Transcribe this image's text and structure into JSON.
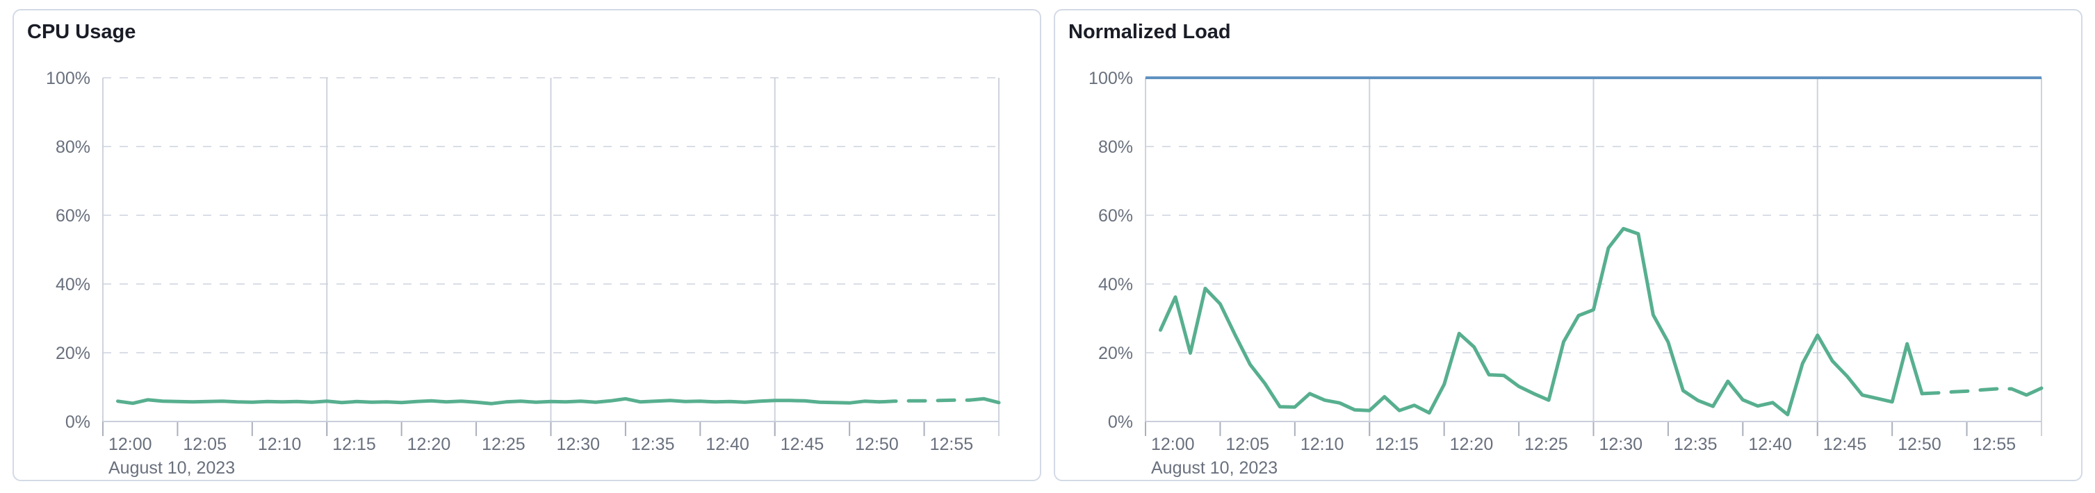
{
  "page": {
    "background_color": "#ffffff"
  },
  "chart_data": [
    {
      "type": "line",
      "slug": "cpu-usage",
      "title": "CPU Usage",
      "grid": true,
      "legend": false,
      "x_axis": {
        "date_label": "August 10, 2023",
        "domain": [
          "12:00",
          "13:00"
        ],
        "tick_labels": [
          "12:00",
          "12:05",
          "12:10",
          "12:15",
          "12:20",
          "12:25",
          "12:30",
          "12:35",
          "12:40",
          "12:45",
          "12:50",
          "12:55"
        ],
        "tick_minutes": [
          0,
          5,
          10,
          15,
          20,
          25,
          30,
          35,
          40,
          45,
          50,
          55
        ],
        "major_gridline_minutes": [
          0,
          15,
          30,
          45,
          60
        ]
      },
      "y_axis": {
        "tick_labels": [
          "0%",
          "20%",
          "40%",
          "60%",
          "80%",
          "100%"
        ],
        "tick_values": [
          0,
          20,
          40,
          60,
          80,
          100
        ],
        "range_pct": [
          0,
          100
        ]
      },
      "threshold_line": null,
      "series": [
        {
          "name": "cpu-usage",
          "color": "#57af8f",
          "start_minute": 1,
          "step_minutes": 1,
          "dashed_minutes": [
            52,
            58
          ],
          "values_pct": [
            5.9,
            5.3,
            6.3,
            5.9,
            5.8,
            5.7,
            5.8,
            5.9,
            5.7,
            5.6,
            5.8,
            5.7,
            5.8,
            5.6,
            5.9,
            5.5,
            5.8,
            5.6,
            5.7,
            5.5,
            5.8,
            6.0,
            5.7,
            5.9,
            5.6,
            5.2,
            5.7,
            5.9,
            5.6,
            5.8,
            5.7,
            5.9,
            5.6,
            6.0,
            6.6,
            5.7,
            5.9,
            6.1,
            5.8,
            5.9,
            5.7,
            5.8,
            5.6,
            5.9,
            6.1,
            6.1,
            6.0,
            5.6,
            5.5,
            5.4,
            5.9,
            5.7,
            5.9,
            6.0,
            6.0,
            6.1,
            6.2,
            6.2,
            6.6,
            5.5
          ]
        }
      ]
    },
    {
      "type": "line",
      "slug": "normalized-load",
      "title": "Normalized Load",
      "grid": true,
      "legend": false,
      "x_axis": {
        "date_label": "August 10, 2023",
        "domain": [
          "12:00",
          "13:00"
        ],
        "tick_labels": [
          "12:00",
          "12:05",
          "12:10",
          "12:15",
          "12:20",
          "12:25",
          "12:30",
          "12:35",
          "12:40",
          "12:45",
          "12:50",
          "12:55"
        ],
        "tick_minutes": [
          0,
          5,
          10,
          15,
          20,
          25,
          30,
          35,
          40,
          45,
          50,
          55
        ],
        "major_gridline_minutes": [
          0,
          15,
          30,
          45,
          60
        ]
      },
      "y_axis": {
        "tick_labels": [
          "0%",
          "20%",
          "40%",
          "60%",
          "80%",
          "100%"
        ],
        "tick_values": [
          0,
          20,
          40,
          60,
          80,
          100
        ],
        "range_pct": [
          0,
          100
        ]
      },
      "threshold_line": {
        "value_pct": 100,
        "color": "#6092c0"
      },
      "series": [
        {
          "name": "normalized-load",
          "color": "#57af8f",
          "start_minute": 1,
          "step_minutes": 1,
          "dashed_minutes": [
            52,
            58
          ],
          "values_pct": [
            26.6,
            36.2,
            19.9,
            38.7,
            34.2,
            25.2,
            16.6,
            11,
            4.3,
            4.2,
            8.1,
            6.2,
            5.4,
            3.4,
            3.2,
            7.2,
            3.2,
            4.7,
            2.5,
            10.8,
            25.6,
            21.7,
            13.6,
            13.4,
            10.2,
            8.1,
            6.2,
            23.2,
            30.8,
            32.5,
            50.5,
            56.1,
            54.6,
            31,
            23.1,
            9,
            6.1,
            4.4,
            11.7,
            6.3,
            4.5,
            5.5,
            2,
            16.9,
            25.1,
            17.6,
            13.1,
            7.7,
            6.7,
            5.7,
            22.6,
            8.1,
            8.3,
            8.6,
            8.8,
            9.2,
            9.5,
            9.5,
            7.7,
            9.7
          ]
        }
      ]
    }
  ]
}
